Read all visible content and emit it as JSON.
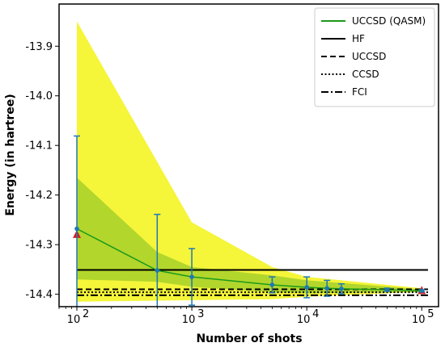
{
  "chart_data": {
    "type": "line",
    "title": "",
    "xlabel": "Number of shots",
    "ylabel": "Energy (in hartree)",
    "xscale": "log",
    "xlim": [
      70,
      140000
    ],
    "ylim": [
      -14.425,
      -13.815
    ],
    "x_ticks": [
      100,
      1000,
      10000,
      100000
    ],
    "x_tick_labels": [
      {
        "base": "10",
        "exp": "2"
      },
      {
        "base": "10",
        "exp": "3"
      },
      {
        "base": "10",
        "exp": "4"
      },
      {
        "base": "10",
        "exp": "5"
      }
    ],
    "y_ticks": [
      -14.4,
      -14.3,
      -14.2,
      -14.1,
      -14.0,
      -13.9
    ],
    "y_tick_labels": [
      "-14.4",
      "-14.3",
      "-14.2",
      "-14.1",
      "-14.0",
      "-13.9"
    ],
    "grid": false,
    "legend_position": "top-right",
    "legend": [
      {
        "label": "UCCSD (QASM)",
        "style": "solid",
        "color": "#1a9a1a"
      },
      {
        "label": "HF",
        "style": "solid",
        "color": "#000000"
      },
      {
        "label": "UCCSD",
        "style": "dashed",
        "color": "#000000"
      },
      {
        "label": "CCSD",
        "style": "dotted",
        "color": "#000000"
      },
      {
        "label": "FCI",
        "style": "dashdot",
        "color": "#000000"
      }
    ],
    "series": [
      {
        "name": "UCCSD (QASM)",
        "color": "#1a9a1a",
        "x": [
          100,
          500,
          1000,
          5000,
          10000,
          15000,
          20000,
          50000,
          100000
        ],
        "y": [
          -14.268,
          -14.352,
          -14.365,
          -14.381,
          -14.386,
          -14.388,
          -14.389,
          -14.391,
          -14.393
        ],
        "yerr": [
          0.187,
          0.113,
          0.057,
          0.016,
          0.021,
          0.016,
          0.01,
          0.003,
          0.002
        ]
      }
    ],
    "hlines": [
      {
        "name": "HF",
        "y": -14.351,
        "style": "solid",
        "color": "#000000"
      },
      {
        "name": "UCCSD",
        "y": -14.39,
        "style": "dashed",
        "color": "#000000"
      },
      {
        "name": "CCSD",
        "y": -14.396,
        "style": "dotted",
        "color": "#000000"
      },
      {
        "name": "FCI",
        "y": -14.402,
        "style": "dashdot",
        "color": "#000000"
      }
    ],
    "outer_band": {
      "color": "#f5f53a",
      "x": [
        100,
        1000,
        5000,
        10000,
        100000
      ],
      "upper": [
        -13.85,
        -14.255,
        -14.345,
        -14.365,
        -14.388
      ],
      "lower": [
        -14.415,
        -14.412,
        -14.41,
        -14.405,
        -14.395
      ]
    },
    "inner_band": {
      "color": "#b2d62c",
      "x": [
        100,
        500,
        1000,
        5000,
        10000,
        100000
      ],
      "upper": [
        -14.165,
        -14.315,
        -14.345,
        -14.362,
        -14.372,
        -14.39
      ],
      "lower": [
        -14.37,
        -14.375,
        -14.385,
        -14.396,
        -14.398,
        -14.396
      ]
    },
    "triangle_markers": {
      "color": "#d42020",
      "x": [
        100,
        100000
      ],
      "y": [
        -14.28,
        -14.393
      ]
    },
    "errorbar_color": "#1f77b4"
  }
}
